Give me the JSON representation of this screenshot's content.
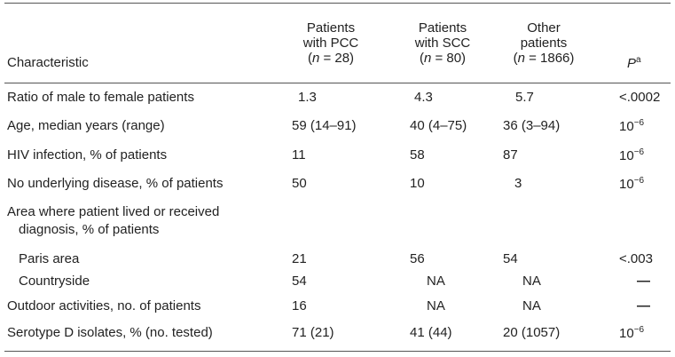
{
  "table": {
    "header": {
      "characteristic": "Characteristic",
      "pcc": {
        "line1": "Patients",
        "line2": "with PCC",
        "n_prefix": "(",
        "n_var": "n",
        "n_rest": " = 28)"
      },
      "scc": {
        "line1": "Patients",
        "line2": "with SCC",
        "n_prefix": "(",
        "n_var": "n",
        "n_rest": " = 80)"
      },
      "other": {
        "line1": "Other",
        "line2": "patients",
        "n_prefix": "(",
        "n_var": "n",
        "n_rest": " = 1866)"
      },
      "p": "P",
      "p_sup": "a"
    },
    "rows": [
      {
        "label": "Ratio of male to female patients",
        "pcc": "1.3",
        "scc": "4.3",
        "other": "5.7",
        "p": "<.0002",
        "p_sup": ""
      },
      {
        "label": "Age, median years (range)",
        "pcc": "59 (14–91)",
        "scc": "40 (4–75)",
        "other": "36 (3–94)",
        "p": "10",
        "p_sup": "−6"
      },
      {
        "label": "HIV infection, % of patients",
        "pcc": "11",
        "scc": "58",
        "other": "87",
        "p": "10",
        "p_sup": "−6"
      },
      {
        "label": "No underlying disease, % of patients",
        "pcc": "50",
        "scc": "10",
        "other": "3",
        "p": "10",
        "p_sup": "−6"
      },
      {
        "label": "Area where patient lived or received",
        "label2": "diagnosis, % of patients",
        "pcc": "",
        "scc": "",
        "other": "",
        "p": "",
        "p_sup": ""
      },
      {
        "label": "Paris area",
        "pcc": "21",
        "scc": "56",
        "other": "54",
        "p": "<.003",
        "p_sup": ""
      },
      {
        "label": "Countryside",
        "pcc": "54",
        "scc": "NA",
        "other": "NA",
        "p": "—",
        "p_sup": ""
      },
      {
        "label": "Outdoor activities, no. of patients",
        "pcc": "16",
        "scc": "NA",
        "other": "NA",
        "p": "—",
        "p_sup": ""
      },
      {
        "label": "Serotype D isolates, % (no. tested)",
        "pcc": "71 (21)",
        "scc": "41 (44)",
        "other": "20 (1057)",
        "p": "10",
        "p_sup": "−6"
      }
    ]
  }
}
